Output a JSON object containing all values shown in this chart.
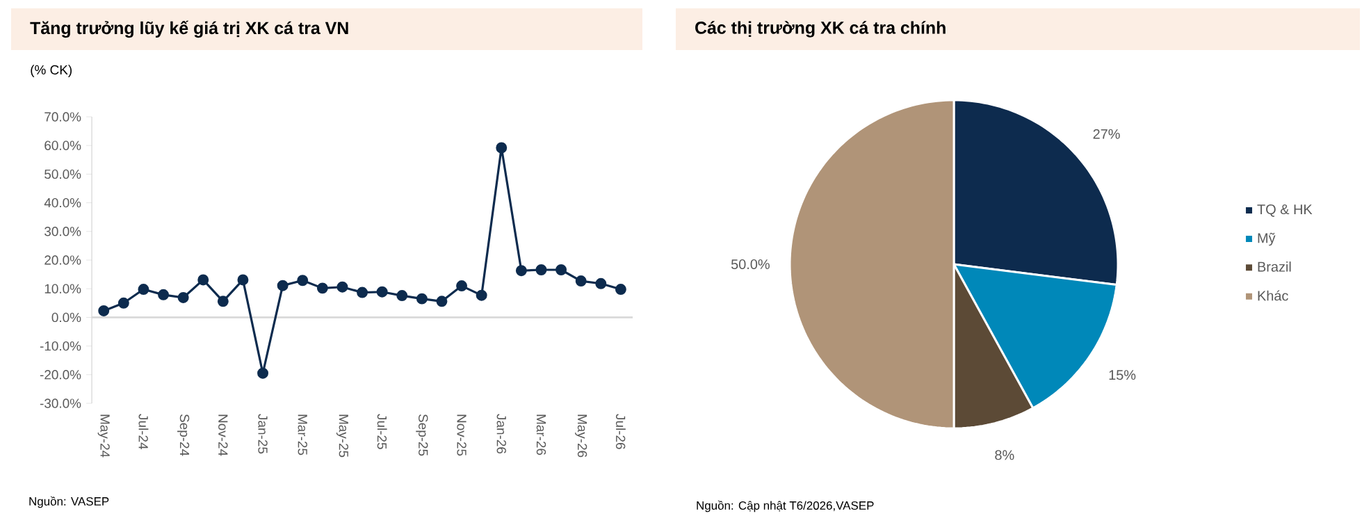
{
  "chart_data": [
    {
      "type": "line",
      "title": "Tăng trưởng lũy kế giá trị XK cá tra VN",
      "ylabel": "(% CK)",
      "categories": [
        "May-24",
        null,
        "Jul-24",
        null,
        "Sep-24",
        null,
        "Nov-24",
        null,
        "Jan-25",
        null,
        "Mar-25",
        null,
        "May-25",
        null,
        "Jul-25",
        null,
        "Sep-25",
        null,
        "Nov-25",
        null,
        "Jan-26",
        null,
        "Mar-26",
        null,
        "May-26",
        null,
        "Jul-26"
      ],
      "values": [
        2.3,
        5.0,
        9.8,
        7.9,
        6.9,
        13.1,
        5.6,
        13.1,
        -19.5,
        11.1,
        12.9,
        10.2,
        10.6,
        8.7,
        8.9,
        7.6,
        6.5,
        5.6,
        11.0,
        7.7,
        59.2,
        16.3,
        16.6,
        16.6,
        12.7,
        11.8,
        9.8
      ],
      "color": "#0d2b4e",
      "marker": "circle",
      "ylim": [
        -30,
        70
      ],
      "yticks": [
        {
          "value": -30,
          "label": "-30.0%"
        },
        {
          "value": -20,
          "label": "-20.0%"
        },
        {
          "value": -10,
          "label": "-10.0%"
        },
        {
          "value": 0,
          "label": "0.0%"
        },
        {
          "value": 10,
          "label": "10.0%"
        },
        {
          "value": 20,
          "label": "20.0%"
        },
        {
          "value": 30,
          "label": "30.0%"
        },
        {
          "value": 40,
          "label": "40.0%"
        },
        {
          "value": 50,
          "label": "50.0%"
        },
        {
          "value": 60,
          "label": "60.0%"
        },
        {
          "value": 70,
          "label": "70.0%"
        }
      ],
      "annotations": [
        "Nguồn: VASEP"
      ]
    },
    {
      "type": "pie",
      "title": "Các thị trường XK cá tra chính",
      "categories": [
        "TQ & HK",
        "Mỹ",
        "Brazil",
        "Khác"
      ],
      "values": [
        27,
        15,
        8,
        50
      ],
      "colors": [
        "#0d2b4e",
        "#0088b9",
        "#5c4a36",
        "#b09478"
      ],
      "value_labels": [
        "27%",
        "15%",
        "8%",
        "50.0%"
      ],
      "legend": "right",
      "annotations": [
        "Nguồn: Cập nhật T6/2026,VASEP"
      ]
    }
  ]
}
